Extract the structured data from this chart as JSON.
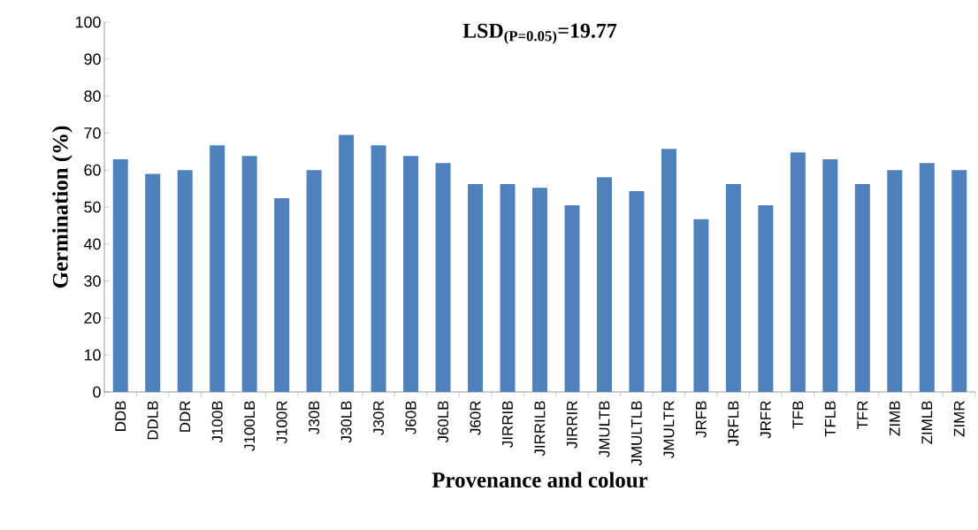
{
  "chart_data": {
    "type": "bar",
    "title": "LSD$_{(P=0.05)}$=19.77",
    "xlabel": "Provenance and colour",
    "ylabel": "Germination (%)",
    "categories": [
      "DDB",
      "DDLB",
      "DDR",
      "J100B",
      "J100LB",
      "J100R",
      "J30B",
      "J30LB",
      "J30R",
      "J60B",
      "J60LB",
      "J60R",
      "JIRRIB",
      "JIRRILB",
      "JIRRIR",
      "JMULTB",
      "JMULTLB",
      "JMULTR",
      "JRFB",
      "JRFLB",
      "JRFR",
      "TFB",
      "TFLB",
      "TFR",
      "ZIMB",
      "ZIMLB",
      "ZIMR"
    ],
    "values": [
      62.9,
      59,
      60,
      66.7,
      63.8,
      52.4,
      60,
      69.5,
      66.7,
      63.8,
      61.9,
      56.2,
      56.2,
      55.2,
      50.5,
      58.1,
      54.3,
      65.7,
      46.7,
      56.2,
      50.5,
      64.8,
      62.9,
      56.2,
      60,
      61.9,
      60
    ],
    "color": "#4f81bd",
    "ylim": [
      0,
      100
    ],
    "yticks": [
      0,
      10,
      20,
      30,
      40,
      50,
      60,
      70,
      80,
      90,
      100
    ],
    "grid": false
  }
}
